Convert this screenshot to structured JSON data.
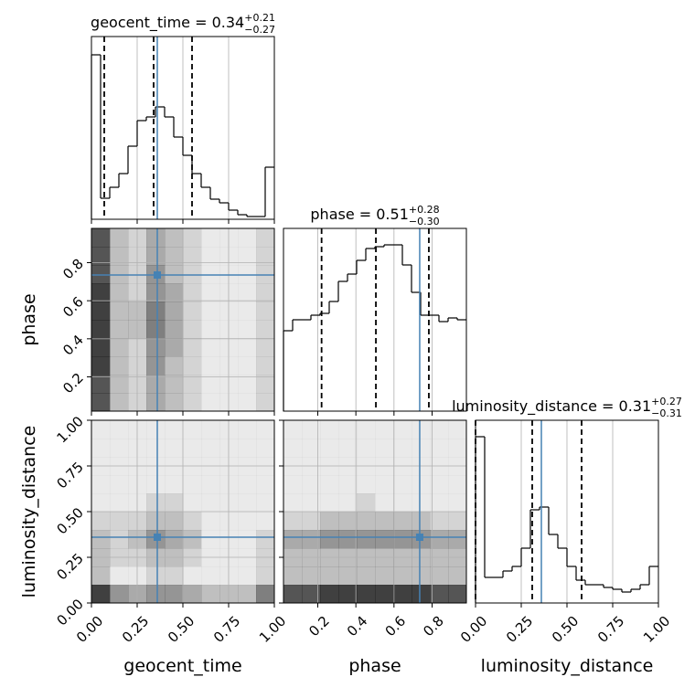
{
  "chart_data": {
    "type": "corner",
    "parameters": [
      {
        "name": "geocent_time",
        "title": "geocent_time = 0.34",
        "plus": "+0.21",
        "minus": "−0.27",
        "lim": [
          0,
          1
        ],
        "ticks": [
          {
            "value": 0,
            "label": "0.00"
          },
          {
            "value": 0.25,
            "label": "0.25"
          },
          {
            "value": 0.5,
            "label": "0.50"
          },
          {
            "value": 0.75,
            "label": "0.75"
          },
          {
            "value": 1,
            "label": "1.00"
          }
        ],
        "bins": [
          0,
          0.05,
          0.1,
          0.15,
          0.2,
          0.25,
          0.3,
          0.35,
          0.4,
          0.45,
          0.5,
          0.55,
          0.6,
          0.65,
          0.7,
          0.75,
          0.8,
          0.85,
          0.9,
          0.95,
          1
        ],
        "counts": [
          180,
          23,
          35,
          50,
          80,
          108,
          112,
          123,
          112,
          90,
          70,
          50,
          35,
          22,
          18,
          10,
          5,
          3,
          3,
          57
        ],
        "quantiles": [
          0.07,
          0.34,
          0.55
        ],
        "truth": 0.36
      },
      {
        "name": "phase",
        "title": "phase = 0.51",
        "plus": "+0.28",
        "minus": "−0.30",
        "lim": [
          0.02,
          0.98
        ],
        "ticks": [
          0.2,
          0.4,
          0.6,
          0.8
        ],
        "bins": [
          0.02,
          0.068,
          0.116,
          0.164,
          0.212,
          0.26,
          0.308,
          0.356,
          0.404,
          0.452,
          0.5,
          0.548,
          0.596,
          0.644,
          0.692,
          0.74,
          0.788,
          0.836,
          0.884,
          0.932,
          0.98
        ],
        "counts": [
          88,
          100,
          100,
          105,
          107,
          120,
          142,
          150,
          165,
          178,
          180,
          182,
          182,
          160,
          130,
          105,
          105,
          98,
          102,
          100
        ],
        "quantiles": [
          0.22,
          0.505,
          0.783
        ],
        "truth": 0.735
      },
      {
        "name": "luminosity_distance",
        "title": "luminosity_distance = 0.31",
        "plus": "+0.27",
        "minus": "−0.31",
        "lim": [
          0,
          1
        ],
        "ticks": [
          {
            "value": 0,
            "label": "0.00"
          },
          {
            "value": 0.25,
            "label": "0.25"
          },
          {
            "value": 0.5,
            "label": "0.50"
          },
          {
            "value": 0.75,
            "label": "0.75"
          },
          {
            "value": 1,
            "label": "1.00"
          }
        ],
        "bins": [
          0,
          0.05,
          0.1,
          0.15,
          0.2,
          0.25,
          0.3,
          0.35,
          0.4,
          0.45,
          0.5,
          0.55,
          0.6,
          0.65,
          0.7,
          0.75,
          0.8,
          0.85,
          0.9,
          0.95,
          1
        ],
        "counts": [
          182,
          28,
          28,
          35,
          40,
          60,
          102,
          105,
          75,
          60,
          40,
          25,
          20,
          20,
          17,
          15,
          12,
          15,
          20,
          40
        ],
        "quantiles": [
          0.0,
          0.31,
          0.58
        ],
        "truth": 0.36
      }
    ],
    "hist_ylim": [
      0,
      200
    ],
    "pairs": [
      {
        "x": 0,
        "y": 1,
        "density": [
          [
            8,
            3,
            2,
            4,
            3,
            2,
            1,
            1,
            1,
            2
          ],
          [
            8,
            3,
            2,
            4,
            3,
            2,
            1,
            1,
            1,
            2
          ],
          [
            9,
            3,
            2,
            5,
            3,
            2,
            1,
            1,
            1,
            2
          ],
          [
            9,
            3,
            2,
            5,
            4,
            2,
            1,
            1,
            1,
            2
          ],
          [
            9,
            3,
            3,
            6,
            4,
            2,
            1,
            1,
            1,
            2
          ],
          [
            9,
            3,
            3,
            6,
            4,
            2,
            1,
            1,
            1,
            2
          ],
          [
            9,
            3,
            2,
            5,
            4,
            2,
            1,
            1,
            1,
            2
          ],
          [
            8,
            3,
            2,
            5,
            3,
            2,
            1,
            1,
            1,
            2
          ],
          [
            8,
            3,
            2,
            4,
            3,
            2,
            1,
            1,
            1,
            2
          ],
          [
            8,
            3,
            2,
            4,
            3,
            2,
            1,
            1,
            1,
            2
          ]
        ]
      },
      {
        "x": 0,
        "y": 2,
        "density": [
          [
            9,
            5,
            4,
            5,
            5,
            4,
            3,
            3,
            3,
            6
          ],
          [
            3,
            1,
            1,
            2,
            2,
            1,
            1,
            1,
            1,
            2
          ],
          [
            3,
            2,
            2,
            3,
            3,
            2,
            1,
            1,
            1,
            2
          ],
          [
            3,
            2,
            3,
            5,
            4,
            3,
            1,
            1,
            1,
            2
          ],
          [
            2,
            2,
            2,
            3,
            3,
            2,
            1,
            1,
            1,
            1
          ],
          [
            1,
            1,
            1,
            2,
            2,
            1,
            1,
            1,
            1,
            1
          ],
          [
            1,
            1,
            1,
            1,
            1,
            1,
            1,
            1,
            1,
            1
          ],
          [
            1,
            1,
            1,
            1,
            1,
            1,
            1,
            1,
            1,
            1
          ],
          [
            1,
            1,
            1,
            1,
            1,
            1,
            1,
            1,
            1,
            1
          ],
          [
            1,
            1,
            1,
            1,
            1,
            1,
            1,
            1,
            1,
            1
          ]
        ]
      },
      {
        "x": 1,
        "y": 2,
        "density": [
          [
            8,
            8,
            9,
            9,
            9,
            9,
            9,
            9,
            8,
            8
          ],
          [
            3,
            3,
            3,
            3,
            3,
            3,
            3,
            3,
            3,
            3
          ],
          [
            3,
            3,
            3,
            3,
            3,
            3,
            3,
            3,
            3,
            3
          ],
          [
            4,
            4,
            5,
            5,
            5,
            5,
            5,
            5,
            4,
            4
          ],
          [
            2,
            2,
            3,
            3,
            3,
            3,
            3,
            3,
            2,
            2
          ],
          [
            1,
            1,
            1,
            1,
            2,
            1,
            1,
            1,
            1,
            1
          ],
          [
            1,
            1,
            1,
            1,
            1,
            1,
            1,
            1,
            1,
            1
          ],
          [
            1,
            1,
            1,
            1,
            1,
            1,
            1,
            1,
            1,
            1
          ],
          [
            1,
            1,
            1,
            1,
            1,
            1,
            1,
            1,
            1,
            1
          ],
          [
            1,
            1,
            1,
            1,
            1,
            1,
            1,
            1,
            1,
            1
          ]
        ]
      }
    ]
  }
}
